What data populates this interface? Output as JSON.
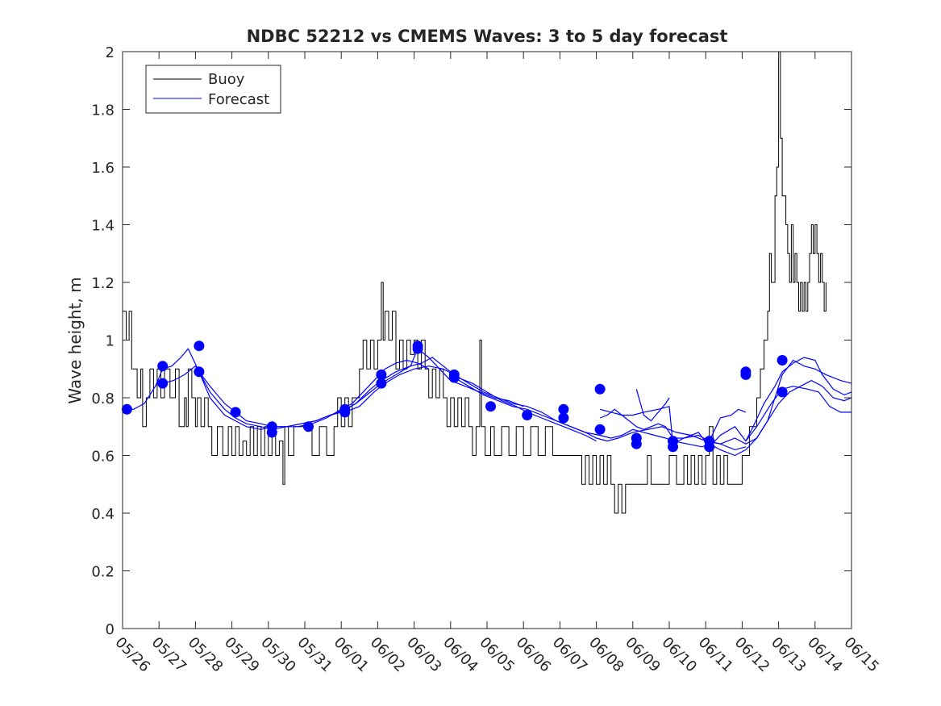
{
  "chart_data": {
    "type": "line",
    "title": "NDBC 52212 vs CMEMS Waves: 3 to 5 day forecast",
    "xlabel": "",
    "ylabel": "Wave height, m",
    "ylim": [
      0,
      2
    ],
    "yticks": [
      "0",
      "0.2",
      "0.4",
      "0.6",
      "0.8",
      "1",
      "1.2",
      "1.4",
      "1.6",
      "1.8",
      "2"
    ],
    "xticks": [
      "05/26",
      "05/27",
      "05/28",
      "05/29",
      "05/30",
      "05/31",
      "06/01",
      "06/02",
      "06/03",
      "06/04",
      "06/05",
      "06/06",
      "06/07",
      "06/08",
      "06/09",
      "06/10",
      "06/11",
      "06/12",
      "06/13",
      "06/14",
      "06/15"
    ],
    "grid": false,
    "legend": {
      "position": "top-left",
      "entries": [
        {
          "label": "Buoy",
          "color": "#000000"
        },
        {
          "label": "Forecast",
          "color": "#0000ff"
        }
      ]
    },
    "colors": {
      "buoy": "#000000",
      "forecast": "#0000ff"
    },
    "buoy": [
      [
        0.0,
        1.1
      ],
      [
        0.1,
        1.0
      ],
      [
        0.18,
        1.1
      ],
      [
        0.25,
        0.9
      ],
      [
        0.4,
        0.8
      ],
      [
        0.5,
        0.9
      ],
      [
        0.55,
        0.7
      ],
      [
        0.65,
        0.8
      ],
      [
        0.75,
        0.9
      ],
      [
        0.85,
        0.8
      ],
      [
        0.95,
        0.9
      ],
      [
        1.05,
        0.8
      ],
      [
        1.15,
        0.9
      ],
      [
        1.3,
        0.8
      ],
      [
        1.45,
        0.9
      ],
      [
        1.55,
        0.7
      ],
      [
        1.7,
        0.8
      ],
      [
        1.75,
        0.7
      ],
      [
        1.8,
        0.9
      ],
      [
        1.9,
        0.8
      ],
      [
        2.0,
        0.7
      ],
      [
        2.05,
        0.8
      ],
      [
        2.15,
        0.7
      ],
      [
        2.25,
        0.8
      ],
      [
        2.35,
        0.7
      ],
      [
        2.45,
        0.6
      ],
      [
        2.6,
        0.7
      ],
      [
        2.75,
        0.6
      ],
      [
        2.9,
        0.7
      ],
      [
        3.0,
        0.6
      ],
      [
        3.1,
        0.7
      ],
      [
        3.2,
        0.6
      ],
      [
        3.3,
        0.65
      ],
      [
        3.4,
        0.6
      ],
      [
        3.5,
        0.7
      ],
      [
        3.6,
        0.6
      ],
      [
        3.7,
        0.7
      ],
      [
        3.8,
        0.6
      ],
      [
        3.9,
        0.7
      ],
      [
        4.0,
        0.6
      ],
      [
        4.1,
        0.7
      ],
      [
        4.2,
        0.6
      ],
      [
        4.3,
        0.65
      ],
      [
        4.4,
        0.5
      ],
      [
        4.45,
        0.7
      ],
      [
        4.55,
        0.6
      ],
      [
        4.7,
        0.7
      ],
      [
        4.8,
        0.7
      ],
      [
        5.0,
        0.7
      ],
      [
        5.2,
        0.6
      ],
      [
        5.4,
        0.7
      ],
      [
        5.6,
        0.6
      ],
      [
        5.8,
        0.7
      ],
      [
        5.9,
        0.8
      ],
      [
        6.0,
        0.7
      ],
      [
        6.1,
        0.8
      ],
      [
        6.2,
        0.7
      ],
      [
        6.3,
        0.8
      ],
      [
        6.4,
        0.8
      ],
      [
        6.5,
        0.9
      ],
      [
        6.6,
        1.0
      ],
      [
        6.7,
        0.9
      ],
      [
        6.8,
        1.0
      ],
      [
        6.9,
        0.9
      ],
      [
        7.0,
        1.0
      ],
      [
        7.1,
        1.2
      ],
      [
        7.15,
        1.0
      ],
      [
        7.2,
        1.1
      ],
      [
        7.3,
        1.0
      ],
      [
        7.4,
        1.1
      ],
      [
        7.5,
        0.9
      ],
      [
        7.6,
        1.0
      ],
      [
        7.7,
        0.9
      ],
      [
        7.8,
        1.0
      ],
      [
        7.9,
        0.95
      ],
      [
        8.0,
        1.0
      ],
      [
        8.1,
        0.9
      ],
      [
        8.2,
        1.0
      ],
      [
        8.3,
        0.9
      ],
      [
        8.4,
        0.8
      ],
      [
        8.5,
        0.9
      ],
      [
        8.6,
        0.8
      ],
      [
        8.7,
        0.9
      ],
      [
        8.8,
        0.8
      ],
      [
        8.9,
        0.7
      ],
      [
        9.0,
        0.8
      ],
      [
        9.1,
        0.7
      ],
      [
        9.2,
        0.8
      ],
      [
        9.3,
        0.7
      ],
      [
        9.4,
        0.8
      ],
      [
        9.5,
        0.7
      ],
      [
        9.6,
        0.6
      ],
      [
        9.7,
        0.7
      ],
      [
        9.8,
        1.0
      ],
      [
        9.85,
        0.7
      ],
      [
        9.95,
        0.6
      ],
      [
        10.1,
        0.7
      ],
      [
        10.2,
        0.6
      ],
      [
        10.4,
        0.7
      ],
      [
        10.6,
        0.6
      ],
      [
        10.8,
        0.7
      ],
      [
        11.0,
        0.6
      ],
      [
        11.2,
        0.7
      ],
      [
        11.4,
        0.6
      ],
      [
        11.6,
        0.7
      ],
      [
        11.8,
        0.6
      ],
      [
        12.0,
        0.6
      ],
      [
        12.2,
        0.6
      ],
      [
        12.4,
        0.6
      ],
      [
        12.6,
        0.5
      ],
      [
        12.7,
        0.6
      ],
      [
        12.8,
        0.5
      ],
      [
        12.9,
        0.6
      ],
      [
        13.0,
        0.5
      ],
      [
        13.1,
        0.6
      ],
      [
        13.2,
        0.5
      ],
      [
        13.3,
        0.6
      ],
      [
        13.4,
        0.5
      ],
      [
        13.5,
        0.4
      ],
      [
        13.6,
        0.5
      ],
      [
        13.7,
        0.4
      ],
      [
        13.8,
        0.5
      ],
      [
        13.9,
        0.5
      ],
      [
        14.0,
        0.5
      ],
      [
        14.2,
        0.5
      ],
      [
        14.4,
        0.6
      ],
      [
        14.5,
        0.5
      ],
      [
        14.7,
        0.5
      ],
      [
        14.9,
        0.5
      ],
      [
        15.0,
        0.6
      ],
      [
        15.2,
        0.5
      ],
      [
        15.4,
        0.6
      ],
      [
        15.5,
        0.5
      ],
      [
        15.6,
        0.6
      ],
      [
        15.7,
        0.5
      ],
      [
        15.8,
        0.6
      ],
      [
        15.9,
        0.5
      ],
      [
        16.0,
        0.6
      ],
      [
        16.1,
        0.7
      ],
      [
        16.2,
        0.5
      ],
      [
        16.3,
        0.6
      ],
      [
        16.4,
        0.5
      ],
      [
        16.5,
        0.6
      ],
      [
        16.6,
        0.5
      ],
      [
        16.8,
        0.5
      ],
      [
        17.0,
        0.6
      ],
      [
        17.2,
        0.7
      ],
      [
        17.4,
        0.8
      ],
      [
        17.5,
        0.9
      ],
      [
        17.6,
        1.0
      ],
      [
        17.7,
        1.1
      ],
      [
        17.75,
        1.3
      ],
      [
        17.8,
        1.2
      ],
      [
        17.9,
        1.5
      ],
      [
        17.95,
        1.6
      ],
      [
        18.0,
        2.0
      ],
      [
        18.05,
        1.7
      ],
      [
        18.1,
        1.5
      ],
      [
        18.2,
        1.4
      ],
      [
        18.25,
        1.3
      ],
      [
        18.3,
        1.2
      ],
      [
        18.35,
        1.4
      ],
      [
        18.4,
        1.2
      ],
      [
        18.45,
        1.3
      ],
      [
        18.5,
        1.2
      ],
      [
        18.55,
        1.1
      ],
      [
        18.6,
        1.2
      ],
      [
        18.65,
        1.1
      ],
      [
        18.7,
        1.2
      ],
      [
        18.75,
        1.1
      ],
      [
        18.8,
        1.2
      ],
      [
        18.85,
        1.3
      ],
      [
        18.9,
        1.4
      ],
      [
        18.95,
        1.3
      ],
      [
        19.0,
        1.4
      ],
      [
        19.05,
        1.3
      ],
      [
        19.1,
        1.2
      ],
      [
        19.15,
        1.3
      ],
      [
        19.2,
        1.2
      ],
      [
        19.25,
        1.1
      ],
      [
        19.3,
        1.2
      ]
    ],
    "forecast_series": [
      {
        "x": [
          0.0,
          0.3,
          0.6,
          0.9,
          1.1,
          1.35,
          1.6,
          1.8,
          2.1,
          2.4,
          2.8,
          3.1,
          3.4,
          3.8,
          4.1,
          4.5,
          4.8,
          5.2,
          5.6,
          6.0,
          6.3,
          6.6,
          6.9,
          7.2,
          7.5,
          7.8,
          8.1,
          8.4
        ],
        "y": [
          0.76,
          0.76,
          0.78,
          0.84,
          0.9,
          0.91,
          0.94,
          0.97,
          0.89,
          0.8,
          0.74,
          0.72,
          0.7,
          0.69,
          0.7,
          0.7,
          0.7,
          0.71,
          0.73,
          0.76,
          0.78,
          0.82,
          0.86,
          0.9,
          0.92,
          0.93,
          0.92,
          0.9
        ]
      },
      {
        "x": [
          1.1,
          1.4,
          1.7,
          2.0,
          2.1,
          2.4,
          2.8,
          3.1,
          3.4,
          3.8,
          4.1,
          4.5,
          4.9,
          5.3,
          5.7,
          6.1,
          6.4,
          6.8,
          7.1,
          7.5,
          7.9,
          8.1,
          8.4,
          8.7,
          9.0,
          9.4,
          9.8,
          10.2,
          10.6,
          11.0
        ],
        "y": [
          0.85,
          0.86,
          0.88,
          0.91,
          0.89,
          0.82,
          0.76,
          0.73,
          0.71,
          0.7,
          0.69,
          0.7,
          0.71,
          0.72,
          0.74,
          0.76,
          0.78,
          0.83,
          0.86,
          0.89,
          0.91,
          0.97,
          0.94,
          0.9,
          0.86,
          0.84,
          0.82,
          0.8,
          0.79,
          0.77
        ]
      },
      {
        "x": [
          2.1,
          2.4,
          2.8,
          3.1,
          3.4,
          3.8,
          4.1,
          4.5,
          4.9,
          5.3,
          5.7,
          6.0,
          6.4,
          6.8,
          7.1,
          7.5,
          7.9,
          8.2,
          8.5,
          8.9,
          9.2,
          9.6,
          10.0,
          10.4,
          10.8,
          11.1,
          11.5,
          11.9,
          12.3,
          12.7,
          13.0
        ],
        "y": [
          0.89,
          0.84,
          0.78,
          0.75,
          0.72,
          0.71,
          0.7,
          0.7,
          0.71,
          0.72,
          0.74,
          0.75,
          0.78,
          0.82,
          0.85,
          0.88,
          0.91,
          0.92,
          0.94,
          0.9,
          0.87,
          0.85,
          0.82,
          0.79,
          0.77,
          0.75,
          0.73,
          0.71,
          0.69,
          0.67,
          0.65
        ]
      },
      {
        "x": [
          6.1,
          6.5,
          6.9,
          7.2,
          7.6,
          8.0,
          8.4,
          8.8,
          9.1,
          9.5,
          9.9,
          10.3,
          10.7,
          11.1,
          11.5,
          11.9,
          12.3,
          12.7,
          13.0,
          13.3,
          13.6,
          14.0,
          14.4,
          14.8,
          15.2,
          15.6,
          16.0,
          16.4,
          16.8,
          17.1
        ],
        "y": [
          0.75,
          0.77,
          0.82,
          0.85,
          0.88,
          0.9,
          0.91,
          0.9,
          0.88,
          0.85,
          0.82,
          0.8,
          0.78,
          0.77,
          0.75,
          0.72,
          0.7,
          0.68,
          0.66,
          0.65,
          0.66,
          0.68,
          0.69,
          0.7,
          0.68,
          0.67,
          0.65,
          0.64,
          0.62,
          0.63
        ]
      },
      {
        "x": [
          9.1,
          9.5,
          9.9,
          10.3,
          10.7,
          11.1,
          11.5,
          11.9,
          12.3,
          12.7,
          13.1,
          13.4,
          13.7,
          14.0,
          14.3,
          14.6,
          14.9,
          15.1,
          15.5,
          15.9,
          16.1,
          16.4,
          16.8,
          17.1,
          17.4,
          17.7,
          18.0,
          18.3,
          18.6,
          18.9,
          19.2,
          19.5,
          19.8,
          20.0
        ],
        "y": [
          0.87,
          0.84,
          0.81,
          0.79,
          0.77,
          0.76,
          0.74,
          0.72,
          0.7,
          0.68,
          0.67,
          0.66,
          0.67,
          0.69,
          0.68,
          0.67,
          0.66,
          0.65,
          0.64,
          0.63,
          0.64,
          0.62,
          0.6,
          0.62,
          0.66,
          0.72,
          0.78,
          0.82,
          0.84,
          0.86,
          0.84,
          0.8,
          0.79,
          0.8
        ]
      },
      {
        "x": [
          13.1,
          13.4,
          13.7,
          14.0,
          14.3,
          14.7,
          15.0,
          15.1,
          15.4,
          15.8,
          16.1,
          16.4,
          16.8,
          17.1,
          17.4,
          17.7,
          18.1,
          18.4,
          18.7,
          19.0,
          19.3,
          19.7,
          20.0
        ],
        "y": [
          0.76,
          0.75,
          0.74,
          0.74,
          0.75,
          0.76,
          0.77,
          0.64,
          0.66,
          0.67,
          0.65,
          0.64,
          0.66,
          0.64,
          0.66,
          0.72,
          0.88,
          0.93,
          0.91,
          0.9,
          0.88,
          0.86,
          0.85
        ]
      },
      {
        "x": [
          13.1,
          13.3,
          13.5,
          13.7,
          13.9,
          14.1,
          14.3,
          14.5,
          14.7,
          14.9,
          15.1,
          15.4,
          15.8,
          16.1,
          16.4,
          16.8,
          17.1,
          17.4,
          17.8,
          18.1,
          18.4,
          18.8,
          19.1,
          19.4,
          19.7,
          20.0
        ],
        "y": [
          0.73,
          0.74,
          0.76,
          0.74,
          0.72,
          0.7,
          0.69,
          0.7,
          0.71,
          0.7,
          0.66,
          0.66,
          0.68,
          0.63,
          0.67,
          0.7,
          0.65,
          0.7,
          0.78,
          0.83,
          0.84,
          0.83,
          0.82,
          0.77,
          0.75,
          0.75
        ]
      },
      {
        "x": [
          14.1,
          14.3,
          14.5,
          14.7,
          14.9,
          15.0
        ],
        "y": [
          0.83,
          0.74,
          0.72,
          0.75,
          0.78,
          0.8
        ]
      },
      {
        "x": [
          16.1,
          16.4,
          16.7,
          16.9,
          17.1
        ],
        "y": [
          0.65,
          0.73,
          0.74,
          0.76,
          0.75
        ]
      },
      {
        "x": [
          17.1,
          17.3,
          17.6,
          17.9,
          18.1,
          18.4,
          18.7,
          19.0,
          19.2,
          19.5,
          19.8,
          20.0
        ],
        "y": [
          0.65,
          0.7,
          0.78,
          0.84,
          0.89,
          0.92,
          0.94,
          0.93,
          0.88,
          0.83,
          0.81,
          0.82
        ]
      }
    ],
    "forecast_points": [
      [
        0.12,
        0.76
      ],
      [
        1.1,
        0.91
      ],
      [
        1.1,
        0.85
      ],
      [
        2.1,
        0.98
      ],
      [
        2.1,
        0.89
      ],
      [
        3.1,
        0.75
      ],
      [
        4.1,
        0.7
      ],
      [
        4.1,
        0.68
      ],
      [
        5.1,
        0.7
      ],
      [
        6.1,
        0.76
      ],
      [
        6.1,
        0.75
      ],
      [
        7.1,
        0.88
      ],
      [
        7.1,
        0.85
      ],
      [
        8.1,
        0.98
      ],
      [
        8.1,
        0.97
      ],
      [
        9.1,
        0.88
      ],
      [
        9.1,
        0.87
      ],
      [
        10.1,
        0.77
      ],
      [
        11.1,
        0.74
      ],
      [
        12.1,
        0.76
      ],
      [
        12.1,
        0.73
      ],
      [
        13.1,
        0.83
      ],
      [
        13.1,
        0.69
      ],
      [
        14.1,
        0.66
      ],
      [
        14.1,
        0.64
      ],
      [
        15.1,
        0.65
      ],
      [
        15.1,
        0.63
      ],
      [
        16.1,
        0.65
      ],
      [
        16.1,
        0.63
      ],
      [
        17.1,
        0.89
      ],
      [
        17.1,
        0.88
      ],
      [
        18.1,
        0.93
      ],
      [
        18.1,
        0.82
      ]
    ]
  }
}
